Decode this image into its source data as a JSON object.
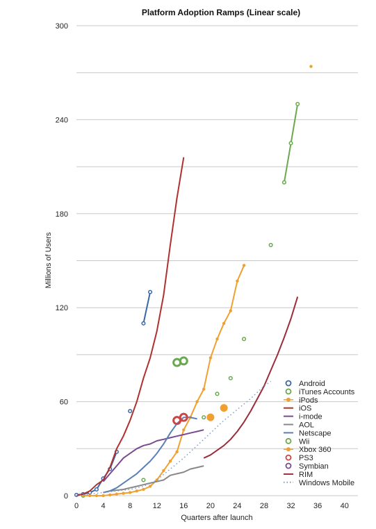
{
  "chart_data": {
    "type": "line",
    "title": "Platform Adoption Ramps (Linear scale)",
    "xlabel": "Quarters after launch",
    "ylabel": "Millions of Users",
    "xlim": [
      0,
      42
    ],
    "ylim": [
      0,
      300
    ],
    "x_ticks": [
      0,
      4,
      8,
      12,
      16,
      20,
      24,
      28,
      32,
      36,
      40
    ],
    "y_ticks": [
      0,
      60,
      120,
      180,
      240,
      300
    ],
    "grid": "horizontal",
    "legend_position": "right",
    "series": [
      {
        "name": "Android",
        "color": "#3a66a6",
        "style": "line-circles",
        "segments": [
          [
            [
              0,
              0.5
            ],
            [
              1,
              1
            ],
            [
              2,
              2
            ],
            [
              3,
              4
            ],
            [
              4,
              11
            ],
            [
              5,
              17
            ],
            [
              6,
              28
            ]
          ],
          [
            [
              10,
              110
            ],
            [
              11,
              130
            ]
          ]
        ],
        "points": [
          [
            8,
            54
          ]
        ]
      },
      {
        "name": "iTunes Accounts",
        "color": "#6aa84f",
        "style": "line-circles",
        "segments": [
          [
            [
              31,
              200
            ],
            [
              32,
              225
            ],
            [
              33,
              250
            ]
          ]
        ],
        "points": [
          [
            1,
            0
          ],
          [
            10,
            10
          ],
          [
            19,
            50
          ],
          [
            21,
            65
          ],
          [
            23,
            75
          ],
          [
            25,
            100
          ],
          [
            29,
            160
          ]
        ],
        "big_points": [
          [
            15,
            85
          ],
          [
            16,
            86
          ]
        ]
      },
      {
        "name": "iPods",
        "color": "#f0a030",
        "style": "line-dots",
        "segments": [
          [
            [
              1,
              0
            ],
            [
              2,
              0
            ],
            [
              3,
              0
            ],
            [
              4,
              0
            ],
            [
              5,
              0.5
            ],
            [
              6,
              1
            ],
            [
              7,
              1.5
            ],
            [
              8,
              2
            ],
            [
              9,
              3
            ],
            [
              10,
              4
            ],
            [
              11,
              6
            ],
            [
              12,
              10
            ],
            [
              13,
              16
            ],
            [
              14,
              22
            ],
            [
              15,
              28
            ],
            [
              16,
              42
            ],
            [
              17,
              50
            ],
            [
              18,
              60
            ],
            [
              19,
              68
            ],
            [
              20,
              88
            ],
            [
              21,
              100
            ],
            [
              22,
              110
            ],
            [
              23,
              118
            ],
            [
              24,
              137
            ],
            [
              25,
              147
            ]
          ]
        ],
        "points": [
          [
            35,
            274
          ]
        ]
      },
      {
        "name": "iOS",
        "color": "#b03030",
        "style": "line",
        "segments": [
          [
            [
              0,
              0
            ],
            [
              1,
              1
            ],
            [
              2,
              3
            ],
            [
              3,
              7
            ],
            [
              4,
              10
            ],
            [
              5,
              18
            ],
            [
              6,
              30
            ],
            [
              7,
              38
            ],
            [
              8,
              48
            ],
            [
              9,
              60
            ],
            [
              10,
              75
            ],
            [
              11,
              88
            ],
            [
              12,
              105
            ],
            [
              13,
              128
            ],
            [
              14,
              160
            ],
            [
              15,
              190
            ],
            [
              16,
              216
            ]
          ]
        ]
      },
      {
        "name": "i-mode",
        "color": "#7a4a90",
        "style": "line",
        "segments": [
          [
            [
              4,
              9
            ],
            [
              5,
              14
            ],
            [
              6,
              19
            ],
            [
              7,
              24
            ],
            [
              8,
              27
            ],
            [
              9,
              30
            ],
            [
              10,
              32
            ],
            [
              11,
              33
            ],
            [
              12,
              35
            ],
            [
              13,
              36
            ],
            [
              14,
              37
            ],
            [
              15,
              38
            ],
            [
              16,
              39
            ],
            [
              17,
              40
            ],
            [
              18,
              41
            ],
            [
              19,
              42
            ]
          ]
        ]
      },
      {
        "name": "AOL",
        "color": "#888888",
        "style": "line",
        "segments": [
          [
            [
              4,
              2
            ],
            [
              5,
              3
            ],
            [
              6,
              3.5
            ],
            [
              7,
              4
            ],
            [
              8,
              5
            ],
            [
              9,
              6
            ],
            [
              10,
              7
            ],
            [
              11,
              8
            ],
            [
              12,
              9
            ],
            [
              13,
              10
            ],
            [
              14,
              13
            ],
            [
              15,
              14
            ],
            [
              16,
              15
            ],
            [
              17,
              17
            ],
            [
              18,
              18
            ],
            [
              19,
              19
            ]
          ]
        ]
      },
      {
        "name": "Netscape",
        "color": "#5a7fb5",
        "style": "line",
        "segments": [
          [
            [
              4,
              2
            ],
            [
              5,
              3
            ],
            [
              6,
              5
            ],
            [
              7,
              8
            ],
            [
              8,
              11
            ],
            [
              9,
              14
            ],
            [
              10,
              18
            ],
            [
              11,
              22
            ],
            [
              12,
              27
            ],
            [
              13,
              33
            ],
            [
              14,
              40
            ],
            [
              15,
              46
            ],
            [
              16,
              50
            ],
            [
              17,
              50
            ],
            [
              18,
              49
            ]
          ]
        ]
      },
      {
        "name": "Wii",
        "color": "#6aa84f",
        "style": "points",
        "points": []
      },
      {
        "name": "Xbox 360",
        "color": "#f0a030",
        "style": "big-dots",
        "points": [
          [
            20,
            50
          ],
          [
            22,
            56
          ]
        ]
      },
      {
        "name": "PS3",
        "color": "#cc4444",
        "style": "big-rings",
        "points": [
          [
            15,
            48
          ],
          [
            16,
            50
          ]
        ]
      },
      {
        "name": "Symbian",
        "color": "#7a4a90",
        "style": "points",
        "points": []
      },
      {
        "name": "RIM",
        "color": "#9b2d3a",
        "style": "line",
        "segments": [
          [
            [
              19,
              24
            ],
            [
              20,
              26
            ],
            [
              21,
              29
            ],
            [
              22,
              32
            ],
            [
              23,
              36
            ],
            [
              24,
              41
            ],
            [
              25,
              47
            ],
            [
              26,
              54
            ],
            [
              27,
              62
            ],
            [
              28,
              70
            ],
            [
              29,
              80
            ],
            [
              30,
              90
            ],
            [
              31,
              101
            ],
            [
              32,
              113
            ],
            [
              33,
              127
            ]
          ]
        ]
      },
      {
        "name": "Windows Mobile",
        "color": "#7a9cc8",
        "style": "dotted",
        "segments": [
          [
            [
              0,
              0
            ],
            [
              2,
              1
            ],
            [
              4,
              2
            ],
            [
              6,
              3
            ],
            [
              8,
              4
            ],
            [
              10,
              6
            ],
            [
              12,
              10
            ],
            [
              14,
              17
            ],
            [
              16,
              24
            ],
            [
              18,
              32
            ],
            [
              20,
              40
            ],
            [
              22,
              48
            ],
            [
              24,
              55
            ],
            [
              26,
              62
            ],
            [
              28,
              70
            ],
            [
              29,
              73
            ]
          ]
        ]
      }
    ]
  }
}
